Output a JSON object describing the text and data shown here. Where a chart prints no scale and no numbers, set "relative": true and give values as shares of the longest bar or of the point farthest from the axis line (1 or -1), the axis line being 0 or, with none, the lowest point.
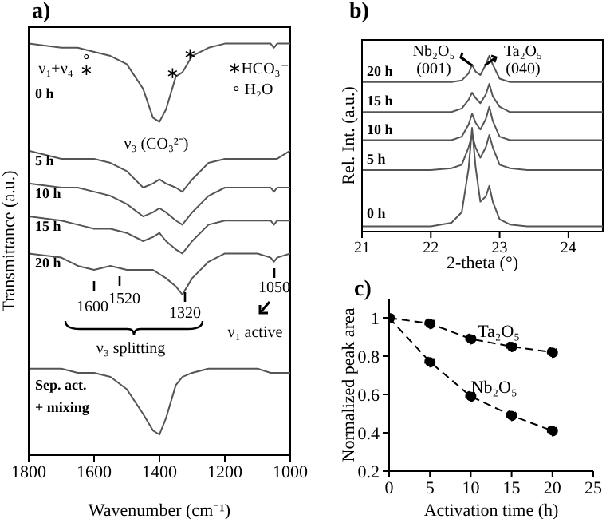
{
  "chart_data": [
    {
      "type": "line",
      "title": "a)",
      "xlabel": "Wavenumber (cm⁻¹)",
      "ylabel": "Transmittance (a.u.)",
      "relative": true,
      "xlim": [
        1800,
        1000
      ],
      "xticks": [
        1800,
        1600,
        1400,
        1200,
        1000
      ],
      "line_style": "solid",
      "marker": "none",
      "x": [
        1800,
        1700,
        1650,
        1600,
        1550,
        1500,
        1450,
        1420,
        1400,
        1380,
        1350,
        1330,
        1300,
        1250,
        1200,
        1100,
        1060,
        1050,
        1040,
        1000
      ],
      "series": [
        {
          "name": "0 h",
          "color": "#555555",
          "values": [
            1,
            0.99,
            0.99,
            0.98,
            0.97,
            0.95,
            0.89,
            0.82,
            0.81,
            0.84,
            0.92,
            0.93,
            0.97,
            0.99,
            1,
            1,
            1,
            0.99,
            1,
            1
          ]
        },
        {
          "name": "5 h",
          "color": "#555555",
          "values": [
            0.74,
            0.72,
            0.72,
            0.72,
            0.71,
            0.69,
            0.65,
            0.66,
            0.67,
            0.66,
            0.65,
            0.64,
            0.67,
            0.71,
            0.72,
            0.72,
            0.72,
            0.72,
            0.72,
            0.74
          ]
        },
        {
          "name": "10 h",
          "color": "#555555",
          "values": [
            0.66,
            0.65,
            0.65,
            0.64,
            0.63,
            0.61,
            0.58,
            0.59,
            0.6,
            0.59,
            0.57,
            0.56,
            0.59,
            0.63,
            0.65,
            0.65,
            0.65,
            0.64,
            0.65,
            0.65
          ]
        },
        {
          "name": "15 h",
          "color": "#555555",
          "values": [
            0.58,
            0.57,
            0.56,
            0.55,
            0.55,
            0.54,
            0.52,
            0.53,
            0.54,
            0.52,
            0.5,
            0.49,
            0.52,
            0.56,
            0.57,
            0.57,
            0.57,
            0.56,
            0.57,
            0.57
          ]
        },
        {
          "name": "20 h",
          "color": "#555555",
          "values": [
            0.49,
            0.48,
            0.46,
            0.45,
            0.46,
            0.45,
            0.45,
            0.45,
            0.44,
            0.43,
            0.41,
            0.39,
            0.43,
            0.47,
            0.49,
            0.49,
            0.48,
            0.47,
            0.48,
            0.49
          ]
        },
        {
          "name": "Sep. act. + mixing",
          "color": "#555555",
          "values": [
            0.21,
            0.21,
            0.2,
            0.2,
            0.19,
            0.16,
            0.1,
            0.06,
            0.05,
            0.09,
            0.17,
            0.19,
            0.2,
            0.21,
            0.21,
            0.21,
            0.2,
            0.2,
            0.2,
            0.2
          ]
        }
      ],
      "annotations": [
        "ν₁+ν₄",
        "∘",
        "∗",
        "∗",
        "∗",
        "∗HCO₃⁻",
        "∘ H₂O",
        "ν₃ (CO₃²⁻)",
        "1600",
        "1520",
        "1320",
        "1050",
        "ν₃ splitting",
        "ν₁ active"
      ]
    },
    {
      "type": "line",
      "title": "b)",
      "xlabel": "2-theta (°)",
      "ylabel": "Rel. Int. (a.u.)",
      "relative": true,
      "xlim": [
        21,
        24.5
      ],
      "xticks": [
        21,
        22,
        23,
        24
      ],
      "line_style": "solid",
      "marker": "none",
      "x": [
        21,
        22,
        22.3,
        22.45,
        22.55,
        22.6,
        22.65,
        22.72,
        22.8,
        22.85,
        22.9,
        23,
        23.15,
        23.4,
        24,
        24.5
      ],
      "series": [
        {
          "name": "20 h",
          "color": "#555555",
          "values": [
            0.85,
            0.85,
            0.85,
            0.86,
            0.9,
            0.95,
            0.91,
            0.89,
            0.95,
            1,
            0.95,
            0.87,
            0.85,
            0.85,
            0.85,
            0.85
          ]
        },
        {
          "name": "15 h",
          "color": "#555555",
          "values": [
            0.68,
            0.68,
            0.68,
            0.7,
            0.75,
            0.79,
            0.76,
            0.73,
            0.78,
            0.84,
            0.77,
            0.71,
            0.68,
            0.68,
            0.68,
            0.68
          ]
        },
        {
          "name": "10 h",
          "color": "#555555",
          "values": [
            0.52,
            0.52,
            0.52,
            0.54,
            0.61,
            0.67,
            0.62,
            0.58,
            0.64,
            0.71,
            0.63,
            0.54,
            0.52,
            0.52,
            0.52,
            0.52
          ]
        },
        {
          "name": "5 h",
          "color": "#555555",
          "values": [
            0.35,
            0.35,
            0.36,
            0.38,
            0.48,
            0.55,
            0.48,
            0.42,
            0.48,
            0.55,
            0.48,
            0.38,
            0.36,
            0.35,
            0.35,
            0.35
          ]
        },
        {
          "name": "0 h",
          "color": "#555555",
          "values": [
            0.03,
            0.03,
            0.05,
            0.11,
            0.36,
            0.59,
            0.37,
            0.17,
            0.2,
            0.26,
            0.17,
            0.07,
            0.04,
            0.03,
            0.03,
            0.03
          ]
        }
      ],
      "annotations": [
        "Nb₂O₅\n(001)",
        "Ta₂O₅\n(040)"
      ]
    },
    {
      "type": "line",
      "title": "c)",
      "xlabel": "Activation time (h)",
      "ylabel": "Normalized peak area",
      "xlim": [
        0,
        25
      ],
      "xticks": [
        0,
        5,
        10,
        15,
        20,
        25
      ],
      "ylim": [
        0.2,
        1.1
      ],
      "yticks": [
        0.2,
        0.4,
        0.6,
        0.8,
        1
      ],
      "line_style": "dashed",
      "marker": "circle",
      "x": [
        0,
        5,
        10,
        15,
        20
      ],
      "series": [
        {
          "name": "Ta₂O₅",
          "color": "#000000",
          "values": [
            1,
            0.97,
            0.89,
            0.85,
            0.82
          ]
        },
        {
          "name": "Nb₂O₅",
          "color": "#000000",
          "values": [
            1,
            0.77,
            0.59,
            0.49,
            0.41
          ]
        }
      ]
    }
  ]
}
